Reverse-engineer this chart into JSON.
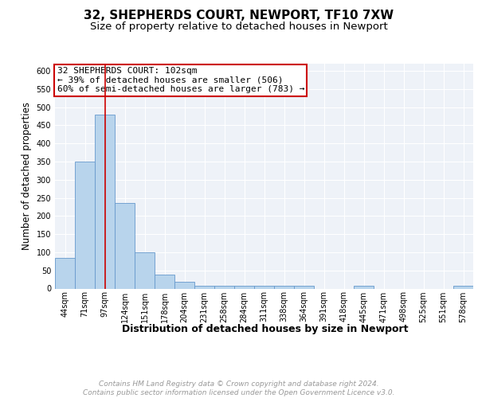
{
  "title_line1": "32, SHEPHERDS COURT, NEWPORT, TF10 7XW",
  "title_line2": "Size of property relative to detached houses in Newport",
  "xlabel": "Distribution of detached houses by size in Newport",
  "ylabel": "Number of detached properties",
  "categories": [
    "44sqm",
    "71sqm",
    "97sqm",
    "124sqm",
    "151sqm",
    "178sqm",
    "204sqm",
    "231sqm",
    "258sqm",
    "284sqm",
    "311sqm",
    "338sqm",
    "364sqm",
    "391sqm",
    "418sqm",
    "445sqm",
    "471sqm",
    "498sqm",
    "525sqm",
    "551sqm",
    "578sqm"
  ],
  "values": [
    85,
    350,
    480,
    235,
    100,
    38,
    18,
    8,
    8,
    8,
    8,
    8,
    8,
    0,
    0,
    8,
    0,
    0,
    0,
    0,
    8
  ],
  "bar_color": "#b8d4ec",
  "bar_edge_color": "#6699cc",
  "subject_bar_index": 2,
  "subject_line_color": "#cc0000",
  "annotation_text": "32 SHEPHERDS COURT: 102sqm\n← 39% of detached houses are smaller (506)\n60% of semi-detached houses are larger (783) →",
  "annotation_box_color": "#ffffff",
  "annotation_box_edge_color": "#cc0000",
  "ylim": [
    0,
    620
  ],
  "yticks": [
    0,
    50,
    100,
    150,
    200,
    250,
    300,
    350,
    400,
    450,
    500,
    550,
    600
  ],
  "background_color": "#eef2f8",
  "grid_color": "#ffffff",
  "footer_text": "Contains HM Land Registry data © Crown copyright and database right 2024.\nContains public sector information licensed under the Open Government Licence v3.0.",
  "title_fontsize": 11,
  "subtitle_fontsize": 9.5,
  "xlabel_fontsize": 9,
  "ylabel_fontsize": 8.5,
  "tick_fontsize": 7,
  "annotation_fontsize": 8,
  "footer_fontsize": 6.5
}
